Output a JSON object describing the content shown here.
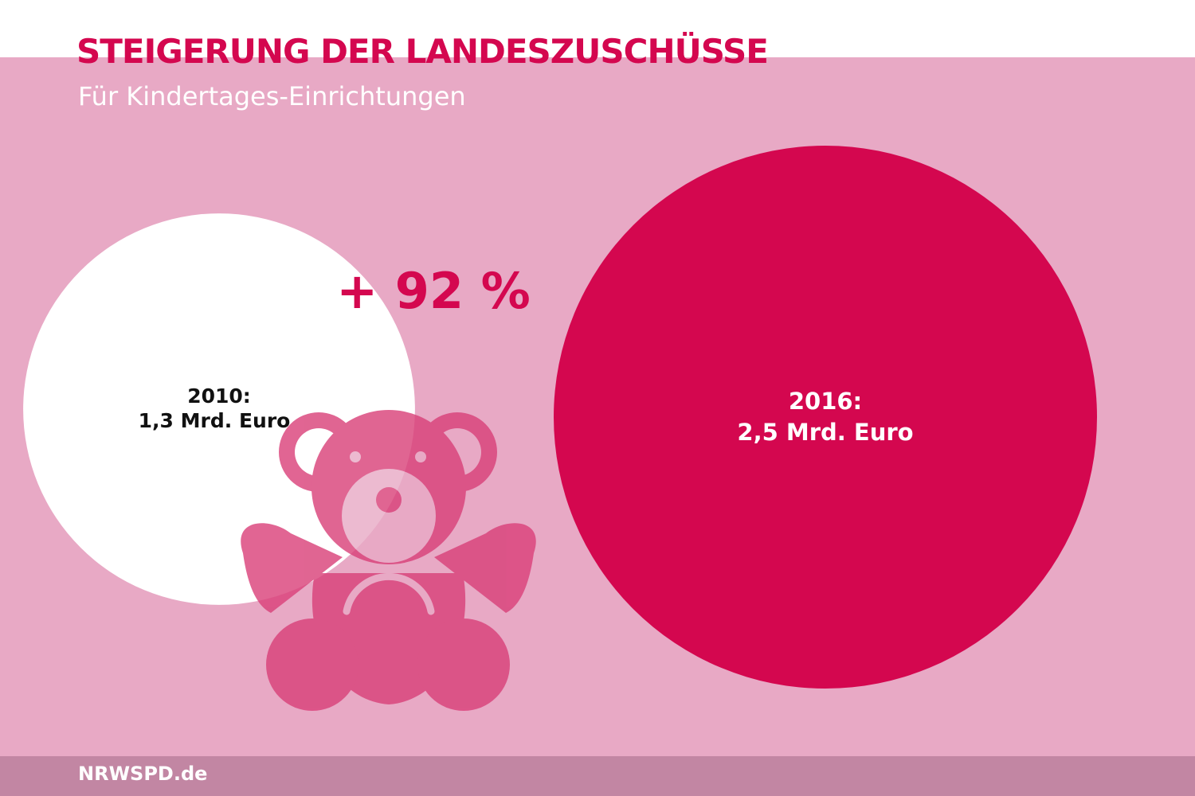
{
  "title": "STEIGERUNG DER LANDESZUSCHÜSSE",
  "subtitle": "Für Kindertages-Einrichtungen",
  "footer": "NRWSPD.de",
  "change_label": "+ 92 %",
  "colors": {
    "accent": "#d4074f",
    "background": "#e8a9c5",
    "footer_bar": "#c286a3",
    "bear": "#dc5a8a"
  },
  "icons": [
    "teddy-bear-icon"
  ],
  "chart_data": {
    "type": "bubble",
    "unit": "Mrd. Euro",
    "series": [
      {
        "year": "2010:",
        "value_label": "1,3 Mrd. Euro",
        "value": 1.3,
        "color": "#ffffff",
        "text_color": "#111111"
      },
      {
        "year": "2016:",
        "value_label": "2,5 Mrd. Euro",
        "value": 2.5,
        "color": "#d4074f",
        "text_color": "#ffffff"
      }
    ],
    "annotation": "+ 92 %"
  }
}
